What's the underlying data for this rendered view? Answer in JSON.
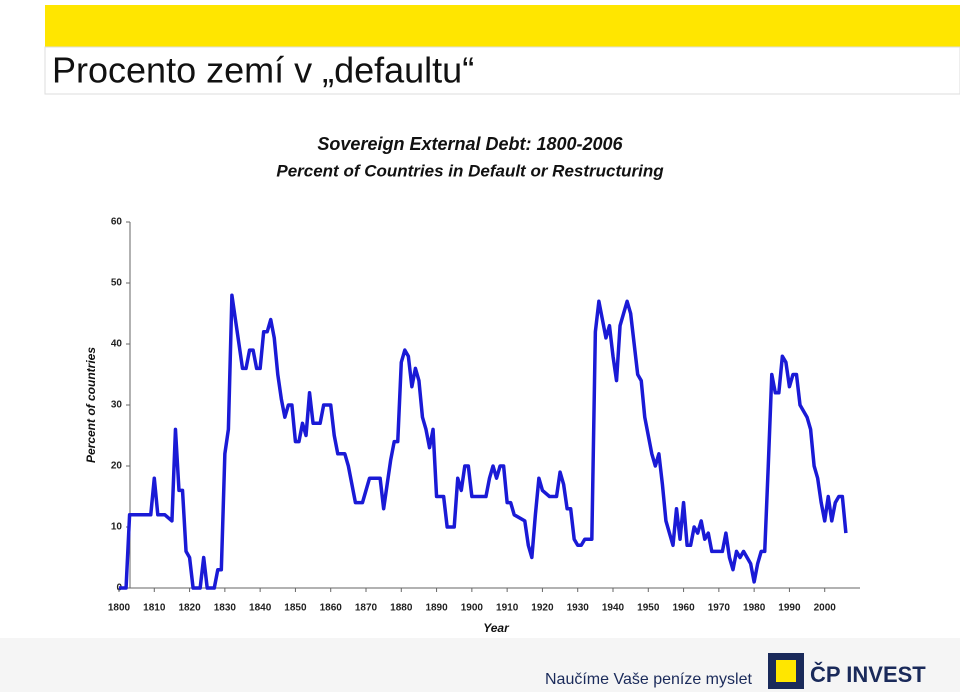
{
  "slide": {
    "title": "Procento zemí v „defaultu“",
    "footer": "Naučíme Vaše peníze myslet",
    "brand": "ČP INVEST"
  },
  "chart_data": {
    "type": "line",
    "title": "Sovereign External Debt: 1800-2006",
    "subtitle": "Percent of Countries in Default or Restructuring",
    "xlabel": "Year",
    "ylabel": "Percent of countries",
    "xlim": [
      1800,
      2010
    ],
    "xticks": [
      1800,
      1810,
      1820,
      1830,
      1840,
      1850,
      1860,
      1870,
      1880,
      1890,
      1900,
      1910,
      1920,
      1930,
      1940,
      1950,
      1960,
      1970,
      1980,
      1990,
      2000
    ],
    "ylim": [
      0,
      60
    ],
    "yticks": [
      0,
      10,
      20,
      30,
      40,
      50,
      60
    ],
    "x": [
      1800,
      1802,
      1803,
      1806,
      1809,
      1810,
      1811,
      1813,
      1815,
      1816,
      1817,
      1818,
      1819,
      1820,
      1821,
      1823,
      1824,
      1825,
      1827,
      1828,
      1829,
      1830,
      1831,
      1832,
      1833,
      1835,
      1836,
      1837,
      1838,
      1839,
      1840,
      1841,
      1842,
      1843,
      1844,
      1845,
      1846,
      1847,
      1848,
      1849,
      1850,
      1851,
      1852,
      1853,
      1854,
      1855,
      1856,
      1857,
      1858,
      1860,
      1861,
      1862,
      1864,
      1865,
      1867,
      1869,
      1870,
      1871,
      1874,
      1875,
      1876,
      1877,
      1878,
      1879,
      1880,
      1881,
      1882,
      1883,
      1884,
      1885,
      1886,
      1887,
      1888,
      1889,
      1890,
      1892,
      1893,
      1895,
      1896,
      1897,
      1898,
      1899,
      1900,
      1904,
      1905,
      1906,
      1907,
      1908,
      1909,
      1910,
      1911,
      1912,
      1915,
      1916,
      1917,
      1918,
      1919,
      1920,
      1922,
      1924,
      1925,
      1926,
      1927,
      1928,
      1929,
      1930,
      1931,
      1932,
      1934,
      1935,
      1936,
      1937,
      1938,
      1939,
      1940,
      1941,
      1942,
      1943,
      1944,
      1945,
      1946,
      1947,
      1948,
      1949,
      1950,
      1951,
      1952,
      1953,
      1954,
      1955,
      1956,
      1957,
      1958,
      1959,
      1960,
      1961,
      1962,
      1963,
      1964,
      1965,
      1966,
      1967,
      1968,
      1971,
      1972,
      1973,
      1974,
      1975,
      1976,
      1977,
      1978,
      1979,
      1980,
      1981,
      1982,
      1983,
      1984,
      1985,
      1986,
      1987,
      1988,
      1989,
      1990,
      1991,
      1992,
      1993,
      1995,
      1996,
      1997,
      1998,
      1999,
      2000,
      2001,
      2002,
      2003,
      2004,
      2005,
      2006
    ],
    "series": [
      {
        "name": "Percent of countries",
        "color": "#1a1ad6",
        "values": [
          0,
          0,
          12,
          12,
          12,
          18,
          12,
          12,
          11,
          26,
          16,
          16,
          6,
          5,
          0,
          0,
          5,
          0,
          0,
          3,
          3,
          22,
          26,
          48,
          44,
          36,
          36,
          39,
          39,
          36,
          36,
          42,
          42,
          44,
          41,
          35,
          31,
          28,
          30,
          30,
          24,
          24,
          27,
          25,
          32,
          27,
          27,
          27,
          30,
          30,
          25,
          22,
          22,
          20,
          14,
          14,
          16,
          18,
          18,
          13,
          17,
          21,
          24,
          24,
          37,
          39,
          38,
          33,
          36,
          34,
          28,
          26,
          23,
          26,
          15,
          15,
          10,
          10,
          18,
          16,
          20,
          20,
          15,
          15,
          18,
          20,
          18,
          20,
          20,
          14,
          14,
          12,
          11,
          7,
          5,
          12,
          18,
          16,
          15,
          15,
          19,
          17,
          13,
          13,
          8,
          7,
          7,
          8,
          8,
          42,
          47,
          44,
          41,
          43,
          38,
          34,
          43,
          45,
          47,
          45,
          40,
          35,
          34,
          28,
          25,
          22,
          20,
          22,
          17,
          11,
          9,
          7,
          13,
          8,
          14,
          7,
          7,
          10,
          9,
          11,
          8,
          9,
          6,
          6,
          9,
          5,
          3,
          6,
          5,
          6,
          5,
          4,
          1,
          4,
          6,
          6,
          20,
          35,
          32,
          32,
          38,
          37,
          33,
          35,
          35,
          30,
          28,
          26,
          20,
          18,
          14,
          11,
          15,
          11,
          14,
          15,
          15,
          9
        ]
      }
    ]
  }
}
